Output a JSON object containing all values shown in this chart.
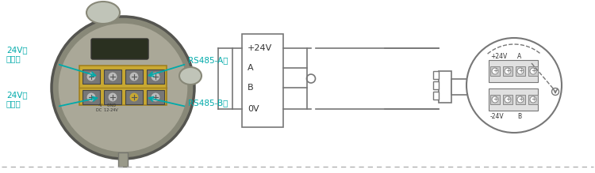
{
  "bg_color": "#ffffff",
  "line_color": "#777777",
  "cyan_color": "#00AAAA",
  "text_color": "#333333",
  "dashed_line_color": "#aaaaaa",
  "box_labels": [
    "+24V",
    "A",
    "B",
    "0V"
  ],
  "terminal_labels_top": [
    "+24V",
    "A"
  ],
  "terminal_labels_bottom": [
    "-24V",
    "B"
  ],
  "device_body_color": "#6b7c5a",
  "device_edge_color": "#4a5a3a",
  "device_inner_color": "#8a9a7a",
  "device_display_color": "#2a3020",
  "terminal_bg_color": "#c8a832",
  "terminal_screw_color": "#999999",
  "fig_width": 7.5,
  "fig_height": 2.19,
  "dpi": 100
}
